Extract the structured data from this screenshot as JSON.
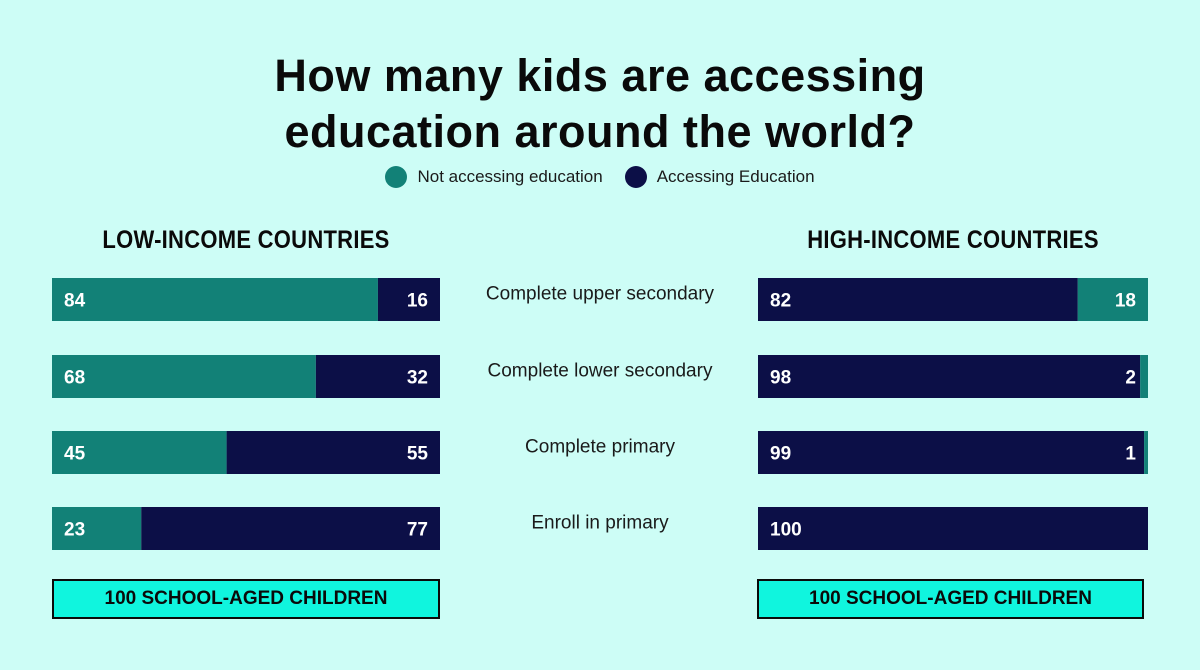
{
  "title": {
    "line1": "How many kids are accessing",
    "line2": "education around the world?"
  },
  "legend": [
    {
      "label": "Not accessing education",
      "color": "#128177"
    },
    {
      "label": "Accessing Education",
      "color": "#0c0f47"
    }
  ],
  "colors": {
    "not_accessing": "#128177",
    "accessing": "#0c0f47",
    "background": "#cdfdf6",
    "footer_box": "#10f5de"
  },
  "panels": {
    "left": {
      "title": "LOW-INCOME COUNTRIES",
      "footer": "100 SCHOOL-AGED CHILDREN"
    },
    "right": {
      "title": "HIGH-INCOME COUNTRIES",
      "footer": "100 SCHOOL-AGED CHILDREN"
    }
  },
  "chart_data": [
    {
      "type": "bar",
      "stacked": true,
      "orientation": "horizontal",
      "title": "LOW-INCOME COUNTRIES",
      "categories": [
        "Complete upper secondary",
        "Complete lower secondary",
        "Complete primary",
        "Enroll in primary"
      ],
      "series": [
        {
          "name": "Not accessing education",
          "values": [
            84,
            68,
            45,
            23
          ]
        },
        {
          "name": "Accessing Education",
          "values": [
            16,
            32,
            55,
            77
          ]
        }
      ],
      "xlim": [
        0,
        100
      ],
      "grid": false,
      "legend_position": "top"
    },
    {
      "type": "bar",
      "stacked": true,
      "orientation": "horizontal",
      "title": "HIGH-INCOME COUNTRIES",
      "categories": [
        "Complete upper secondary",
        "Complete lower secondary",
        "Complete primary",
        "Enroll in primary"
      ],
      "series": [
        {
          "name": "Accessing Education",
          "values": [
            82,
            98,
            99,
            100
          ]
        },
        {
          "name": "Not accessing education",
          "values": [
            18,
            2,
            1,
            0
          ]
        }
      ],
      "xlim": [
        0,
        100
      ],
      "grid": false,
      "legend_position": "top"
    }
  ]
}
